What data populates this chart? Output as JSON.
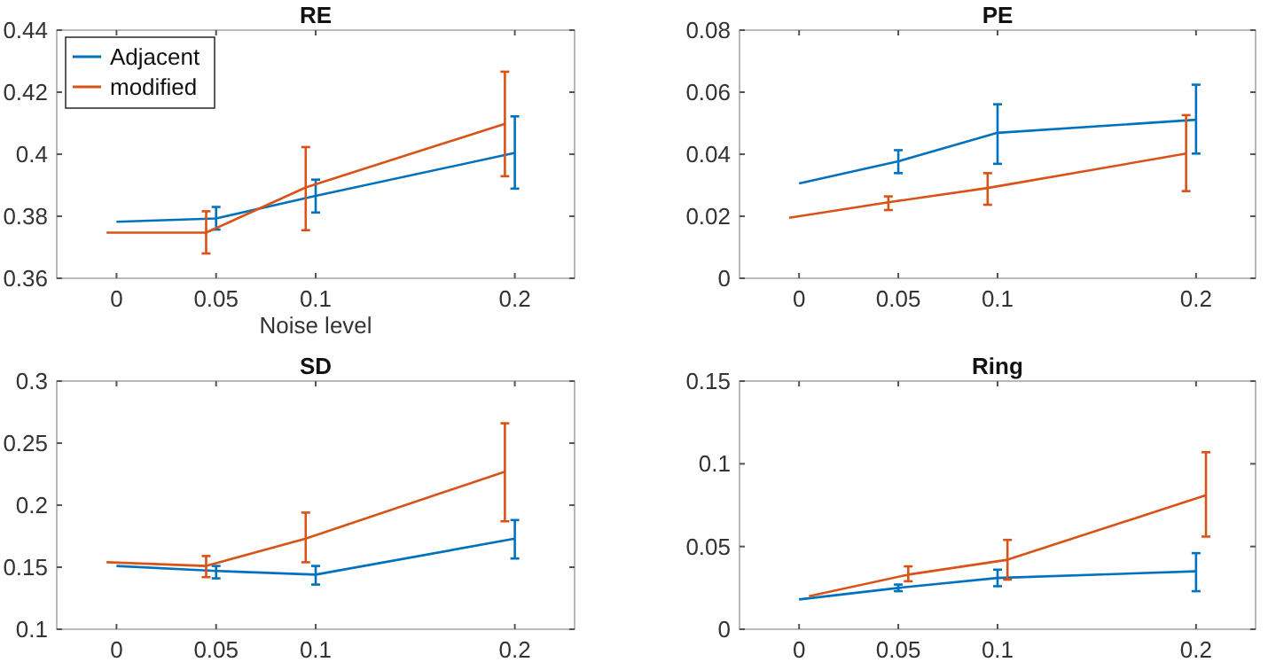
{
  "chart_data": [
    {
      "type": "line",
      "title": "RE",
      "xlabel": "Noise level",
      "xlim": [
        -0.03,
        0.23
      ],
      "xticks": [
        0,
        0.05,
        0.1,
        0.2
      ],
      "ylim": [
        0.36,
        0.44
      ],
      "yticks": [
        0.36,
        0.38,
        0.4,
        0.42,
        0.44
      ],
      "legend": "top left",
      "grid": false,
      "series": [
        {
          "name": "Adjacent",
          "color": "#0072bd",
          "x": [
            0,
            0.05,
            0.1,
            0.2
          ],
          "values": [
            0.3782,
            0.3793,
            0.3866,
            0.4004
          ],
          "errors": [
            null,
            [
              0.3757,
              0.383
            ],
            [
              0.3812,
              0.3918
            ],
            [
              0.3889,
              0.4122
            ]
          ]
        },
        {
          "name": "modified",
          "color": "#d95319",
          "x": [
            -0.005,
            0.045,
            0.095,
            0.195
          ],
          "values": [
            0.3747,
            0.3747,
            0.3893,
            0.4098
          ],
          "errors": [
            null,
            [
              0.368,
              0.3816
            ],
            [
              0.3755,
              0.4023
            ],
            [
              0.3929,
              0.4266
            ]
          ]
        }
      ]
    },
    {
      "type": "line",
      "title": "PE",
      "xlim": [
        -0.03,
        0.23
      ],
      "xticks": [
        0,
        0.05,
        0.1,
        0.2
      ],
      "ylim": [
        0,
        0.08
      ],
      "yticks": [
        0,
        0.02,
        0.04,
        0.06,
        0.08
      ],
      "grid": false,
      "series": [
        {
          "color": "#0072bd",
          "x": [
            0,
            0.05,
            0.1,
            0.2
          ],
          "values": [
            0.0306,
            0.0377,
            0.0469,
            0.0511
          ],
          "errors": [
            null,
            [
              0.0339,
              0.0413
            ],
            [
              0.0369,
              0.0561
            ],
            [
              0.0402,
              0.0624
            ]
          ]
        },
        {
          "color": "#d95319",
          "x": [
            -0.005,
            0.045,
            0.095,
            0.195
          ],
          "values": [
            0.0195,
            0.0245,
            0.0291,
            0.0402
          ],
          "errors": [
            null,
            [
              0.022,
              0.0264
            ],
            [
              0.0237,
              0.0339
            ],
            [
              0.0281,
              0.0526
            ]
          ]
        }
      ]
    },
    {
      "type": "line",
      "title": "SD",
      "xlim": [
        -0.03,
        0.23
      ],
      "xticks": [
        0,
        0.05,
        0.1,
        0.2
      ],
      "ylim": [
        0.1,
        0.3
      ],
      "yticks": [
        0.1,
        0.15,
        0.2,
        0.25,
        0.3
      ],
      "grid": false,
      "series": [
        {
          "color": "#0072bd",
          "x": [
            0,
            0.05,
            0.1,
            0.2
          ],
          "values": [
            0.151,
            0.147,
            0.144,
            0.173
          ],
          "errors": [
            null,
            [
              0.141,
              0.151
            ],
            [
              0.136,
              0.151
            ],
            [
              0.157,
              0.188
            ]
          ]
        },
        {
          "color": "#d95319",
          "x": [
            -0.005,
            0.045,
            0.095,
            0.195
          ],
          "values": [
            0.154,
            0.151,
            0.173,
            0.227
          ],
          "errors": [
            null,
            [
              0.142,
              0.159
            ],
            [
              0.154,
              0.194
            ],
            [
              0.187,
              0.266
            ]
          ]
        }
      ]
    },
    {
      "type": "line",
      "title": "Ring",
      "xlim": [
        -0.03,
        0.23
      ],
      "xticks": [
        0,
        0.05,
        0.1,
        0.2
      ],
      "ylim": [
        0,
        0.15
      ],
      "yticks": [
        0,
        0.05,
        0.1,
        0.15
      ],
      "grid": false,
      "series": [
        {
          "color": "#0072bd",
          "x": [
            0,
            0.05,
            0.1,
            0.2
          ],
          "values": [
            0.018,
            0.025,
            0.031,
            0.035
          ],
          "errors": [
            null,
            [
              0.023,
              0.027
            ],
            [
              0.026,
              0.036
            ],
            [
              0.023,
              0.046
            ]
          ]
        },
        {
          "color": "#d95319",
          "x": [
            0.005,
            0.055,
            0.105,
            0.205
          ],
          "values": [
            0.02,
            0.033,
            0.042,
            0.081
          ],
          "errors": [
            null,
            [
              0.029,
              0.038
            ],
            [
              0.03,
              0.054
            ],
            [
              0.056,
              0.107
            ]
          ]
        }
      ]
    }
  ]
}
